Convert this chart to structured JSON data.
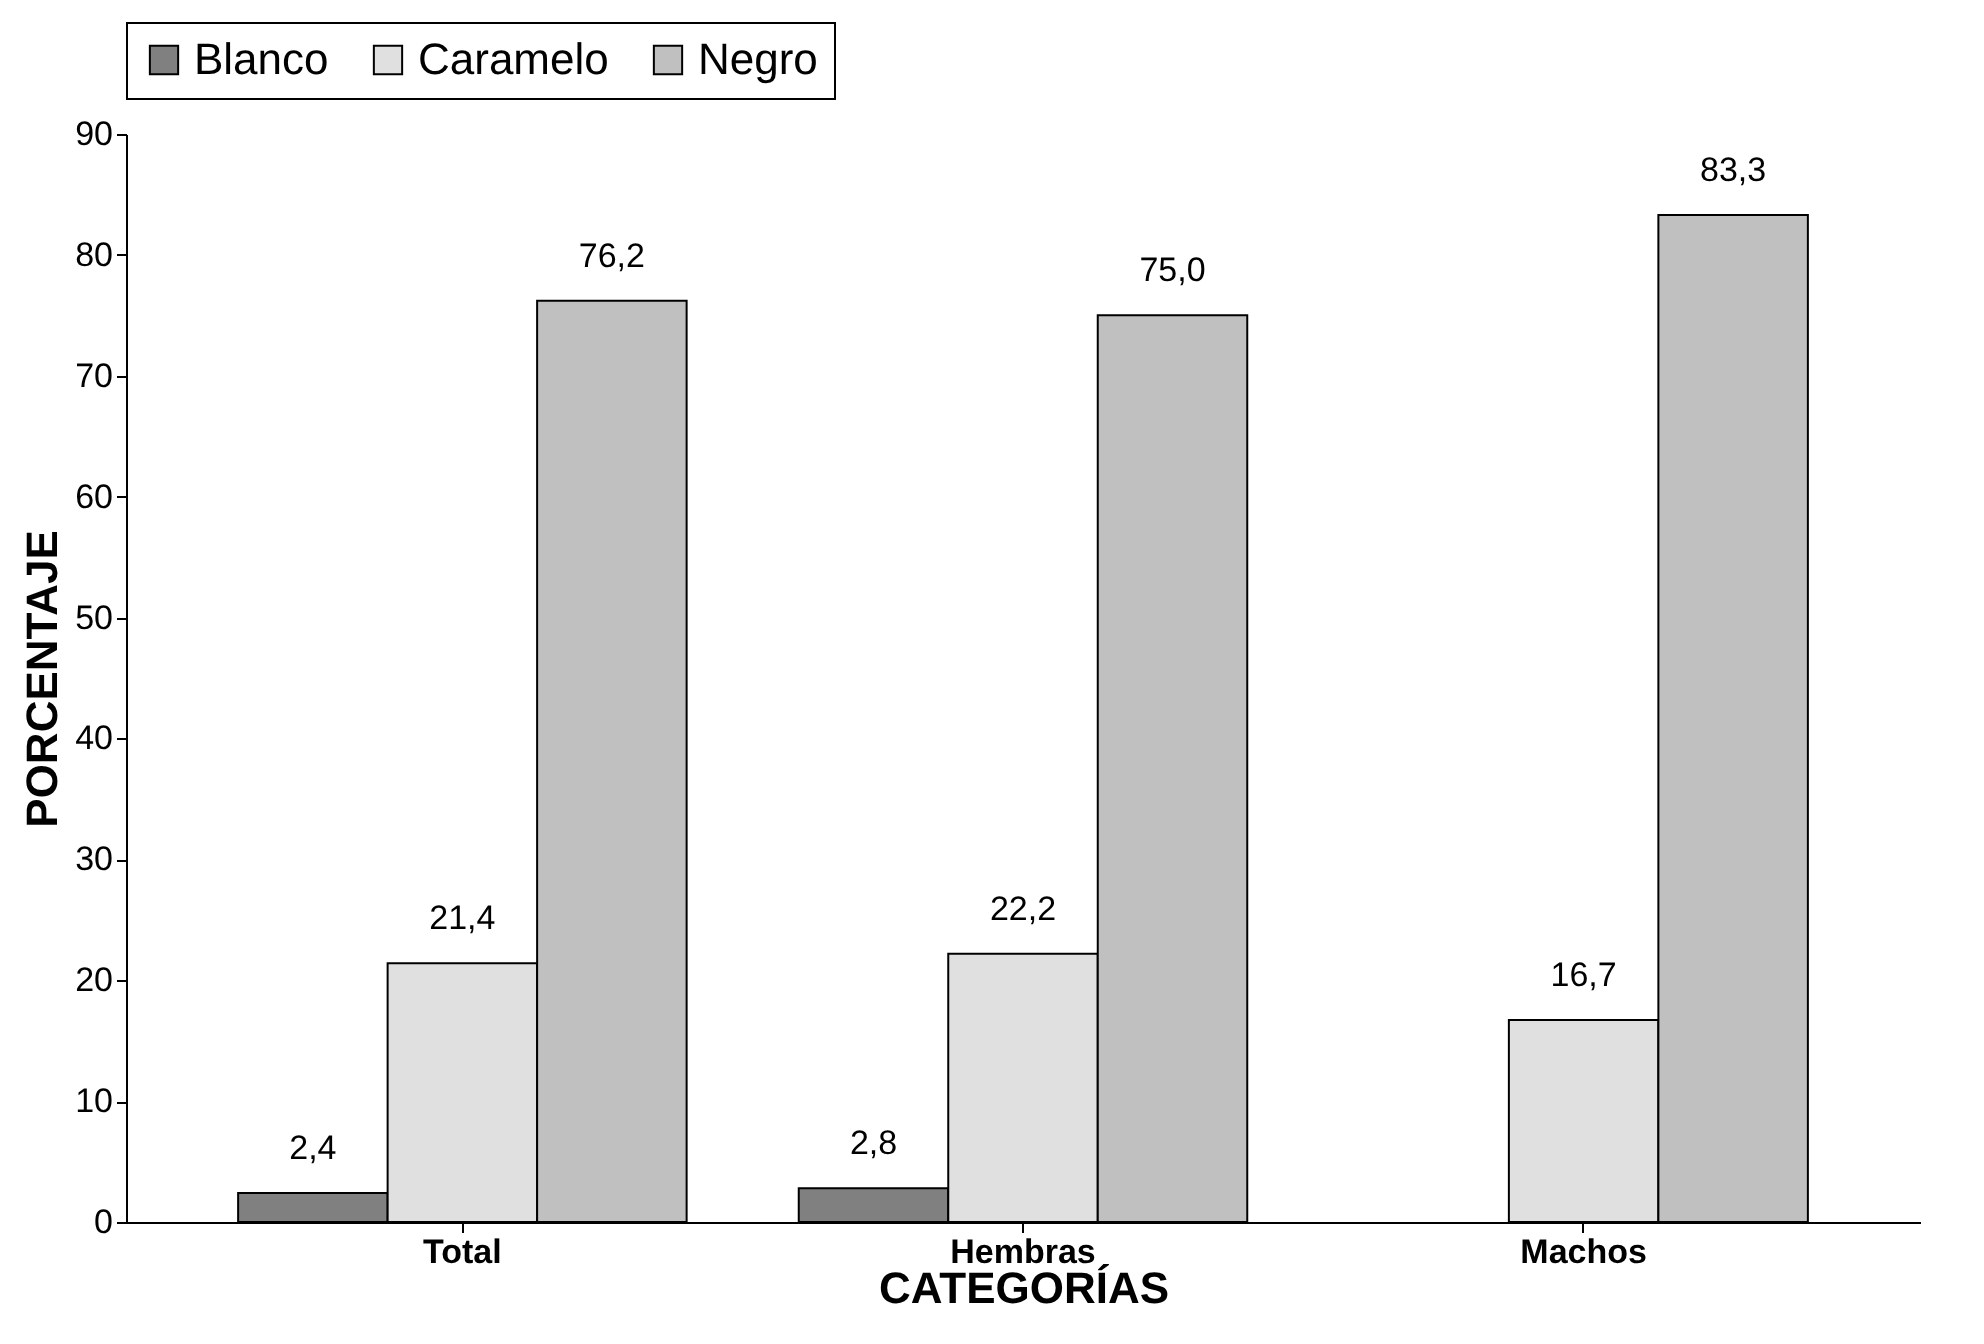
{
  "chart_data": {
    "type": "bar",
    "xlabel": "CATEGORÍAS",
    "ylabel": "PORCENTAJE",
    "categories": [
      "Total",
      "Hembras",
      "Machos"
    ],
    "series": [
      {
        "name": "Blanco",
        "color": "#808080",
        "values": [
          2.4,
          2.8,
          null
        ],
        "value_labels": [
          "2,4",
          "2,8",
          null
        ]
      },
      {
        "name": "Caramelo",
        "color": "#e0e0e0",
        "values": [
          21.4,
          22.2,
          16.7
        ],
        "value_labels": [
          "21,4",
          "22,2",
          "16,7"
        ]
      },
      {
        "name": "Negro",
        "color": "#c0c0c0",
        "values": [
          76.2,
          75.0,
          83.3
        ],
        "value_labels": [
          "76,2",
          "75,0",
          "83,3"
        ]
      }
    ],
    "ylim": [
      0,
      90
    ],
    "yticks": [
      0,
      10,
      20,
      30,
      40,
      50,
      60,
      70,
      80,
      90
    ],
    "grid": false,
    "legend": "top"
  }
}
